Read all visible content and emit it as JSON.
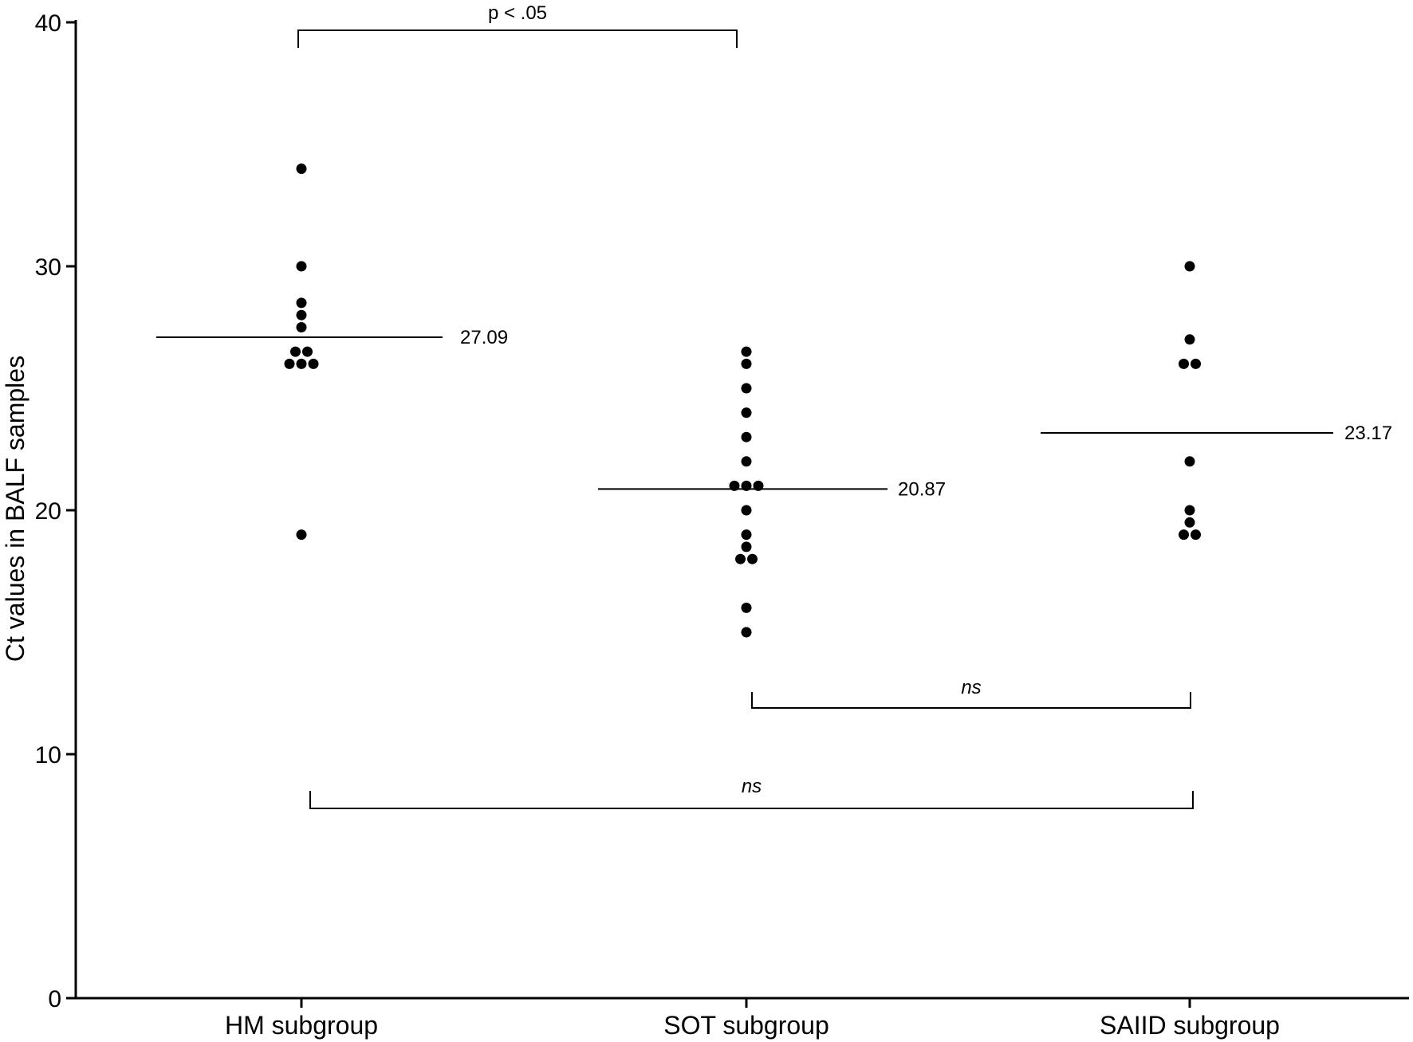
{
  "chart_data": {
    "type": "scatter",
    "ylabel": "Ct values in BALF samples",
    "ylim": [
      0,
      40
    ],
    "yticks": [
      0,
      10,
      20,
      30,
      40
    ],
    "categories": [
      "HM subgroup",
      "SOT subgroup",
      "SAIID subgroup"
    ],
    "series": [
      {
        "category": "HM subgroup",
        "values": [
          34,
          30,
          28.5,
          28,
          27.5,
          26.5,
          26.5,
          26,
          26,
          26,
          19
        ],
        "mean": 27.09,
        "mean_label": "27.09"
      },
      {
        "category": "SOT subgroup",
        "values": [
          26.5,
          26,
          25,
          24,
          23,
          22,
          21,
          21,
          21,
          20,
          19,
          18.5,
          18,
          18,
          16,
          15
        ],
        "mean": 20.87,
        "mean_label": "20.87"
      },
      {
        "category": "SAIID subgroup",
        "values": [
          30,
          27,
          26,
          26,
          22,
          20,
          19.5,
          19,
          19
        ],
        "mean": 23.17,
        "mean_label": "23.17"
      }
    ],
    "comparisons": [
      {
        "from": "HM subgroup",
        "to": "SOT subgroup",
        "label": "p < .05"
      },
      {
        "from": "SOT subgroup",
        "to": "SAIID subgroup",
        "label": "ns"
      },
      {
        "from": "HM subgroup",
        "to": "SAIID subgroup",
        "label": "ns"
      }
    ]
  }
}
